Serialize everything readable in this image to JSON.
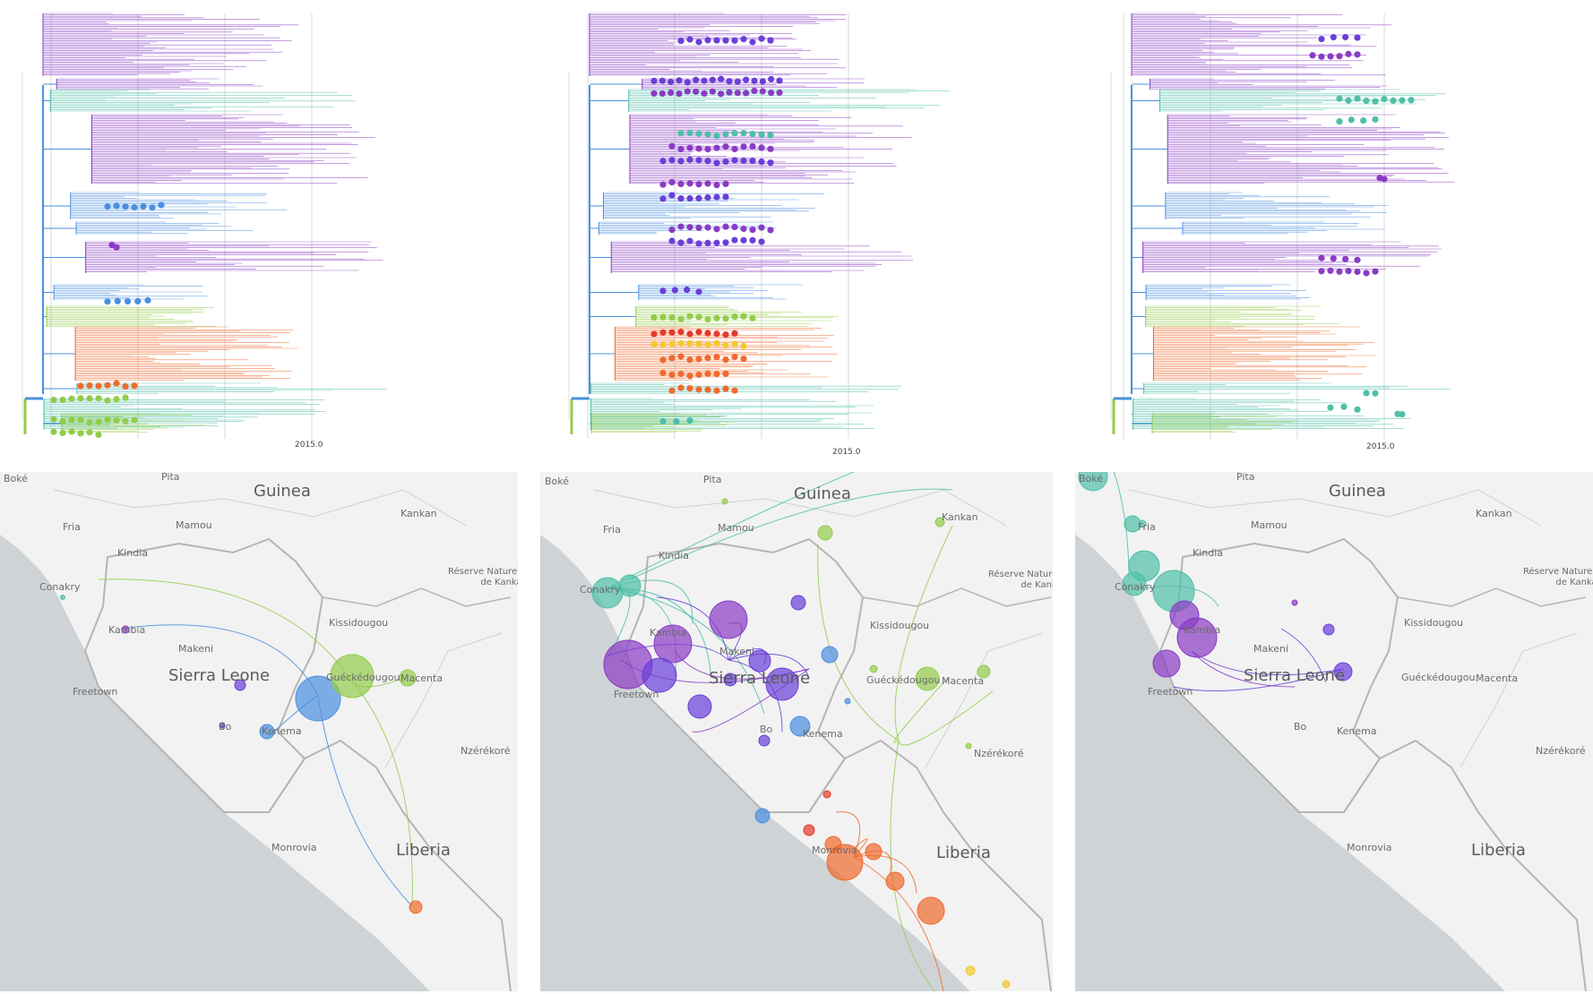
{
  "panels": [
    {
      "axis_label": "2015.0"
    },
    {
      "axis_label": "2015.0"
    },
    {
      "axis_label": "2015.0"
    }
  ],
  "map_labels": {
    "guinea": "Guinea",
    "sierra_leone": "Sierra Leone",
    "liberia": "Liberia",
    "boke": "Boké",
    "fria": "Fria",
    "pita": "Pita",
    "mamou": "Mamou",
    "kankan": "Kankan",
    "kindia": "Kindia",
    "conakry": "Conakry",
    "reserve": "Réserve Naturelle\nde Kankan",
    "kissidougou": "Kissidougou",
    "kambia": "Kambia",
    "makeni": "Makeni",
    "gueckedougou": "Guéckédougou",
    "macenta": "Macenta",
    "freetown": "Freetown",
    "bo": "Bo",
    "kenema": "Kenema",
    "nzerekore": "Nzérékoré",
    "monrovia": "Monrovia"
  },
  "colors": {
    "purple": "#8a3bc4",
    "violet": "#6a3fd8",
    "blue": "#4a8fe0",
    "teal": "#4fbfa8",
    "green": "#93cc4a",
    "orange": "#f06a2e",
    "red": "#e53a2a",
    "yellow": "#f3c92a",
    "land": "#f2f2f2",
    "sea": "#cfd3d6",
    "border": "#b5b5b5"
  }
}
